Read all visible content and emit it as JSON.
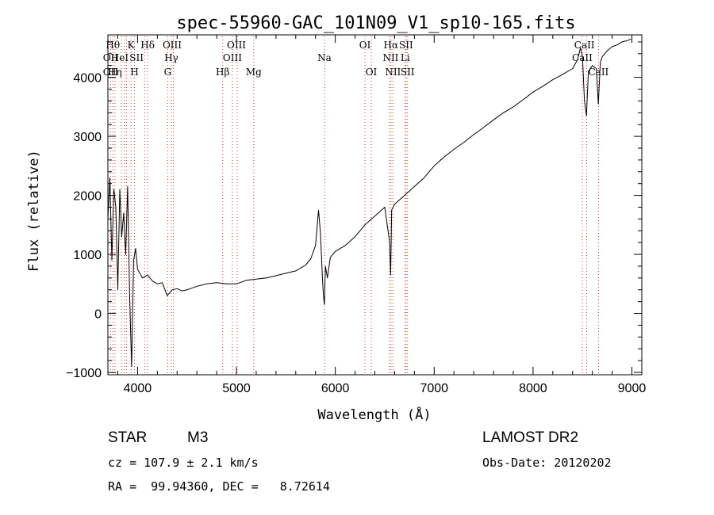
{
  "chart_data": {
    "type": "line",
    "title": "spec-55960-GAC_101N09_V1_sp10-165.fits",
    "xlabel": "Wavelength (Å)",
    "ylabel": "Flux (relative)",
    "xlim": [
      3700,
      9100
    ],
    "ylim": [
      -1040,
      4720
    ],
    "x_ticks": [
      4000,
      5000,
      6000,
      7000,
      8000,
      9000
    ],
    "x_tick_labels": [
      "4000",
      "5000",
      "6000",
      "7000",
      "8000",
      "9000"
    ],
    "y_ticks": [
      -1000,
      0,
      1000,
      2000,
      3000,
      4000
    ],
    "y_tick_labels": [
      "−1000",
      "0",
      "1000",
      "2000",
      "3000",
      "4000"
    ],
    "grid": false,
    "line_color": "#000000",
    "marker_color": "#cc3333",
    "series": [
      {
        "x": [
          3700,
          3720,
          3740,
          3760,
          3780,
          3800,
          3820,
          3840,
          3860,
          3880,
          3900,
          3920,
          3940,
          3960,
          3980,
          4000,
          4050,
          4100,
          4150,
          4200,
          4250,
          4300,
          4350,
          4400,
          4450,
          4500,
          4600,
          4700,
          4800,
          4900,
          5000,
          5100,
          5200,
          5300,
          5400,
          5500,
          5600,
          5700,
          5750,
          5800,
          5830,
          5850,
          5870,
          5880,
          5890,
          5900,
          5920,
          5950,
          6000,
          6100,
          6200,
          6300,
          6400,
          6500,
          6550,
          6560,
          6570,
          6600,
          6700,
          6800,
          6900,
          7000,
          7100,
          7200,
          7300,
          7400,
          7500,
          7600,
          7700,
          7800,
          7900,
          8000,
          8100,
          8200,
          8300,
          8400,
          8450,
          8480,
          8500,
          8520,
          8540,
          8560,
          8600,
          8640,
          8660,
          8680,
          8700,
          8750,
          8800,
          8850,
          8900,
          8950,
          8990
        ],
        "y": [
          1600,
          2300,
          900,
          2100,
          1800,
          400,
          2100,
          1300,
          1700,
          1000,
          2150,
          300,
          -900,
          900,
          1100,
          750,
          600,
          650,
          550,
          500,
          520,
          300,
          400,
          420,
          380,
          400,
          460,
          500,
          520,
          500,
          500,
          560,
          580,
          600,
          640,
          680,
          720,
          820,
          920,
          1150,
          1750,
          1350,
          600,
          300,
          150,
          800,
          600,
          950,
          1050,
          1150,
          1300,
          1500,
          1650,
          1800,
          1200,
          650,
          1750,
          1850,
          2000,
          2150,
          2300,
          2500,
          2650,
          2780,
          2900,
          3030,
          3150,
          3280,
          3400,
          3500,
          3620,
          3750,
          3850,
          3960,
          4050,
          4150,
          4300,
          4500,
          4350,
          3600,
          3350,
          4100,
          4200,
          4150,
          3550,
          4250,
          4350,
          4450,
          4520,
          4550,
          4600,
          4620,
          4650
        ]
      }
    ],
    "line_markers": [
      {
        "x": 3727,
        "top": "OII",
        "bottom": "OII"
      },
      {
        "x": 3750,
        "top": "Hθ",
        "bottom": ""
      },
      {
        "x": 3771,
        "top": "",
        "bottom": "Hη"
      },
      {
        "x": 3835,
        "top": "",
        "bottom": ""
      },
      {
        "x": 3869,
        "top": "",
        "bottom": ""
      },
      {
        "x": 3889,
        "top": "",
        "bottom": ""
      },
      {
        "x": 3934,
        "top": "K",
        "bottom": ""
      },
      {
        "x": 3969,
        "top": "",
        "bottom": "H"
      },
      {
        "x": 4072,
        "top": "",
        "bottom": ""
      },
      {
        "x": 4102,
        "top": "Hδ",
        "bottom": ""
      },
      {
        "x": 4305,
        "top": "",
        "bottom": "G"
      },
      {
        "x": 4341,
        "top": "",
        "bottom": ""
      },
      {
        "x": 4363,
        "top": "",
        "bottom": ""
      },
      {
        "x": 4861,
        "top": "",
        "bottom": "Hβ"
      },
      {
        "x": 4959,
        "top": "",
        "bottom": ""
      },
      {
        "x": 5007,
        "top": "",
        "bottom": ""
      },
      {
        "x": 5175,
        "top": "",
        "bottom": "Mg"
      },
      {
        "x": 5893,
        "top": "",
        "bottom": ""
      },
      {
        "x": 6300,
        "top": "OI",
        "bottom": ""
      },
      {
        "x": 6364,
        "top": "",
        "bottom": "OI"
      },
      {
        "x": 6548,
        "top": "",
        "bottom": ""
      },
      {
        "x": 6563,
        "top": "",
        "bottom": ""
      },
      {
        "x": 6583,
        "top": "",
        "bottom": "NII"
      },
      {
        "x": 6707,
        "top": "",
        "bottom": ""
      },
      {
        "x": 6716,
        "top": "",
        "bottom": ""
      },
      {
        "x": 6731,
        "top": "",
        "bottom": ""
      },
      {
        "x": 8498,
        "top": "",
        "bottom": ""
      },
      {
        "x": 8542,
        "top": "",
        "bottom": ""
      },
      {
        "x": 8662,
        "top": "",
        "bottom": ""
      }
    ],
    "line_label_rows": [
      [
        {
          "x": 3750,
          "text": "Hθ"
        },
        {
          "x": 3934,
          "text": "K"
        },
        {
          "x": 4102,
          "text": "Hδ"
        },
        {
          "x": 4350,
          "text": "OIII"
        },
        {
          "x": 5000,
          "text": "OIII"
        },
        {
          "x": 6300,
          "text": "OI"
        },
        {
          "x": 6563,
          "text": "Hα"
        },
        {
          "x": 6716,
          "text": "SII"
        },
        {
          "x": 8520,
          "text": "CaII"
        }
      ],
      [
        {
          "x": 3727,
          "text": "OII"
        },
        {
          "x": 3820,
          "text": "HeI"
        },
        {
          "x": 3990,
          "text": "SII"
        },
        {
          "x": 4341,
          "text": "Hγ"
        },
        {
          "x": 4959,
          "text": "OIII"
        },
        {
          "x": 5890,
          "text": "Na"
        },
        {
          "x": 6560,
          "text": "NII"
        },
        {
          "x": 6707,
          "text": "Li"
        },
        {
          "x": 8498,
          "text": "CaII"
        }
      ],
      [
        {
          "x": 3727,
          "text": "OII"
        },
        {
          "x": 3771,
          "text": "Hη"
        },
        {
          "x": 3969,
          "text": "H"
        },
        {
          "x": 4305,
          "text": "G"
        },
        {
          "x": 4861,
          "text": "Hβ"
        },
        {
          "x": 5175,
          "text": "Mg"
        },
        {
          "x": 6364,
          "text": "OI"
        },
        {
          "x": 6583,
          "text": "NII"
        },
        {
          "x": 6731,
          "text": "SII"
        },
        {
          "x": 8662,
          "text": "CaII"
        }
      ]
    ]
  },
  "info": {
    "object_class": "STAR",
    "subclass": "M3",
    "survey": "LAMOST DR2",
    "cz": "cz = 107.9 ± 2.1 km/s",
    "obs_date": "Obs-Date: 20120202",
    "coords": "RA =  99.94360, DEC =   8.72614"
  }
}
